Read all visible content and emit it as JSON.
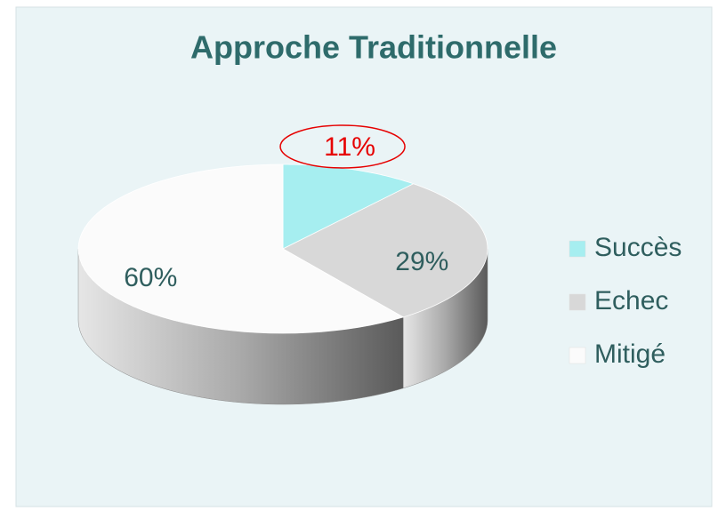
{
  "chart_data": {
    "type": "pie",
    "title": "Approche Traditionnelle",
    "categories": [
      "Succès",
      "Echec",
      "Mitigé"
    ],
    "values": [
      11,
      29,
      60
    ],
    "value_labels": [
      "11%",
      "29%",
      "60%"
    ],
    "colors": [
      "#a6eef0",
      "#d8d8d8",
      "#fbfbfb"
    ],
    "label_colors": [
      "#e60000",
      "#2f5e5e",
      "#2f5e5e"
    ],
    "legend": "right"
  }
}
